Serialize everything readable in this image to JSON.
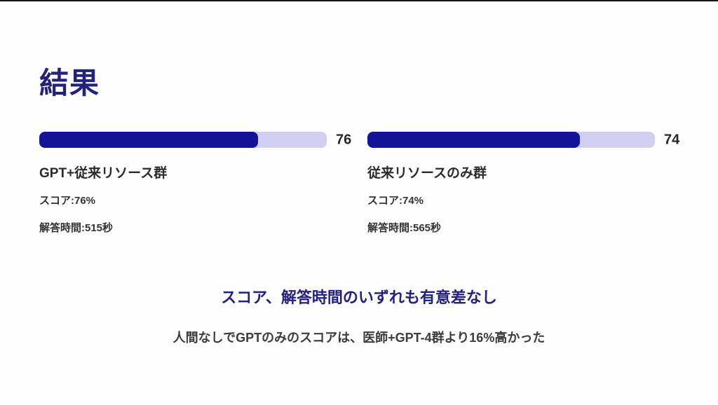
{
  "slide": {
    "title": "結果",
    "groups": [
      {
        "name": "GPT+従来リソース群",
        "bar_value": "76",
        "bar_style": "width:76%",
        "score_line": "スコア:76%",
        "time_line": "解答時間:515秒"
      },
      {
        "name": "従来リソースのみ群",
        "bar_value": "74",
        "bar_style": "width:74%",
        "score_line": "スコア:74%",
        "time_line": "解答時間:565秒"
      }
    ],
    "conclusion": "スコア、解答時間のいずれも有意差なし",
    "note": "人間なしでGPTのみのスコアは、医師+GPT-4群より16%高かった",
    "colors": {
      "accent_navy": "#22227b",
      "bar_fill": "#141499",
      "bar_track": "#cfcef3",
      "value_text": "#26262b"
    }
  },
  "chart_data": {
    "type": "bar",
    "orientation": "horizontal",
    "title": "結果",
    "categories": [
      "GPT+従来リソース群",
      "従来リソースのみ群"
    ],
    "series": [
      {
        "name": "スコア (%)",
        "values": [
          76,
          74
        ]
      },
      {
        "name": "解答時間 (秒)",
        "values": [
          515,
          565
        ]
      }
    ],
    "bar_value_labels": [
      "76",
      "74"
    ],
    "xlim": [
      0,
      100
    ],
    "grid": false,
    "legend": false,
    "annotations": [
      "スコア、解答時間のいずれも有意差なし",
      "人間なしでGPTのみのスコアは、医師+GPT-4群より16%高かった"
    ]
  }
}
